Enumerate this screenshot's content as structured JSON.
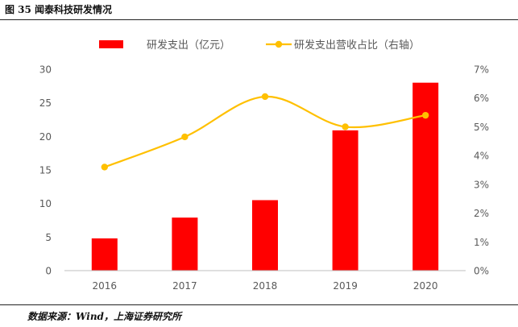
{
  "figure_title": "图 35 闻泰科技研发情况",
  "source": "数据来源：Wind，上海证券研究所",
  "chart_data": {
    "type": "bar",
    "categories": [
      "2016",
      "2017",
      "2018",
      "2019",
      "2020"
    ],
    "series": [
      {
        "name": "研发支出（亿元）",
        "kind": "bar",
        "axis": "left",
        "color": "#FF0000",
        "values": [
          4.8,
          7.9,
          10.5,
          20.9,
          28.0
        ]
      },
      {
        "name": "研发支出营收占比（右轴）",
        "kind": "line",
        "axis": "right",
        "color": "#FFC000",
        "values": [
          3.6,
          4.65,
          6.05,
          5.0,
          5.4
        ]
      }
    ],
    "left_axis": {
      "min": 0,
      "max": 30,
      "ticks": [
        "0",
        "5",
        "10",
        "15",
        "20",
        "25",
        "30"
      ]
    },
    "right_axis": {
      "min": 0,
      "max": 7,
      "unit": "%",
      "ticks": [
        "0%",
        "1%",
        "2%",
        "3%",
        "4%",
        "5%",
        "6%",
        "7%"
      ]
    },
    "legend_position": "top",
    "grid": false
  }
}
